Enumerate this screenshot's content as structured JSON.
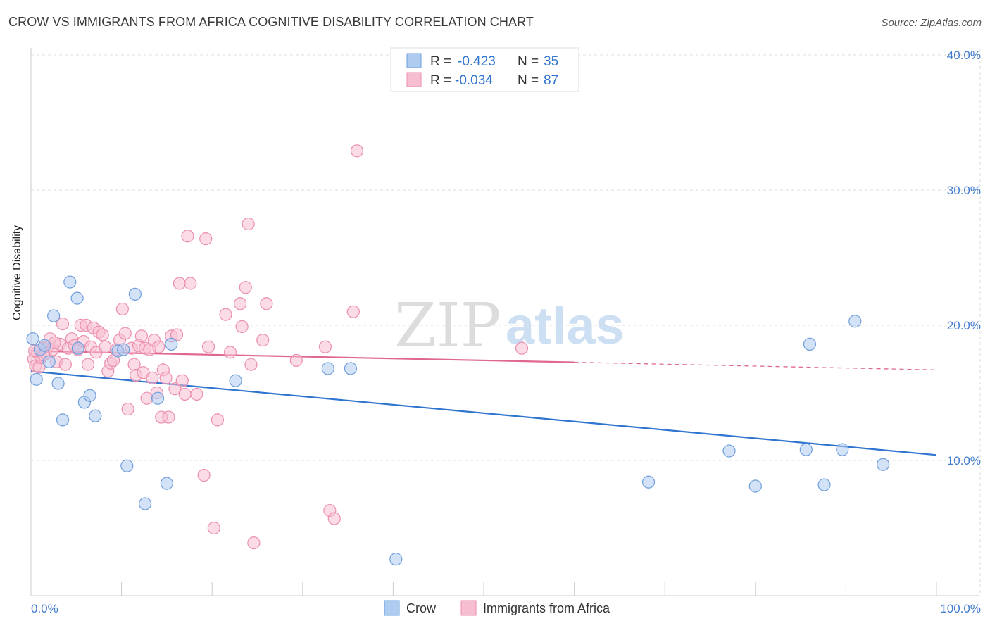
{
  "title": "CROW VS IMMIGRANTS FROM AFRICA COGNITIVE DISABILITY CORRELATION CHART",
  "source": "Source: ZipAtlas.com",
  "watermark": {
    "zip": "ZIP",
    "atlas": "atlas"
  },
  "legend_stats": [
    {
      "r_label": "R =",
      "r_value": "-0.423",
      "n_label": "N =",
      "n_value": "35"
    },
    {
      "r_label": "R =",
      "r_value": "-0.034",
      "n_label": "N =",
      "n_value": "87"
    }
  ],
  "colors": {
    "crow_fill": "#aecbf0",
    "crow_stroke": "#6f9fdc",
    "crow_line": "#2f74cf",
    "africa_fill": "#f7bdd0",
    "africa_stroke": "#ec8eae",
    "africa_line": "#e06890",
    "tick_text": "#3f7bd0",
    "grid": "#dddddd"
  },
  "chart_data": {
    "type": "scatter",
    "title": "CROW VS IMMIGRANTS FROM AFRICA COGNITIVE DISABILITY CORRELATION CHART",
    "xlabel": "",
    "ylabel": "Cognitive Disability",
    "xlim": [
      0,
      100
    ],
    "ylim": [
      0,
      40
    ],
    "x_tick_labels": [
      "0.0%",
      "100.0%"
    ],
    "y_ticks": [
      10,
      20,
      30,
      40
    ],
    "y_tick_labels": [
      "10.0%",
      "20.0%",
      "30.0%",
      "40.0%"
    ],
    "grid": true,
    "legend_position": "bottom",
    "series": [
      {
        "name": "Crow",
        "r": -0.423,
        "n": 35,
        "trend": {
          "x0": 0,
          "y0": 16.6,
          "x1": 100,
          "y1": 10.4,
          "solid_until": 100
        },
        "points": [
          [
            0.2,
            19.0
          ],
          [
            0.6,
            16.0
          ],
          [
            1.0,
            18.2
          ],
          [
            1.5,
            18.5
          ],
          [
            2.0,
            17.3
          ],
          [
            2.5,
            20.7
          ],
          [
            3.0,
            15.7
          ],
          [
            3.5,
            13.0
          ],
          [
            4.3,
            23.2
          ],
          [
            5.2,
            18.3
          ],
          [
            5.1,
            22.0
          ],
          [
            5.9,
            14.3
          ],
          [
            6.5,
            14.8
          ],
          [
            7.1,
            13.3
          ],
          [
            9.6,
            18.1
          ],
          [
            10.2,
            18.2
          ],
          [
            10.6,
            9.6
          ],
          [
            11.5,
            22.3
          ],
          [
            12.6,
            6.8
          ],
          [
            14.0,
            14.6
          ],
          [
            15.0,
            8.3
          ],
          [
            15.5,
            18.6
          ],
          [
            22.6,
            15.9
          ],
          [
            32.8,
            16.8
          ],
          [
            35.3,
            16.8
          ],
          [
            40.3,
            2.7
          ],
          [
            68.2,
            8.4
          ],
          [
            77.1,
            10.7
          ],
          [
            80.0,
            8.1
          ],
          [
            85.6,
            10.8
          ],
          [
            86.0,
            18.6
          ],
          [
            87.6,
            8.2
          ],
          [
            89.6,
            10.8
          ],
          [
            91.0,
            20.3
          ],
          [
            94.1,
            9.7
          ]
        ]
      },
      {
        "name": "Immigrants from Africa",
        "r": -0.034,
        "n": 87,
        "trend": {
          "x0": 0,
          "y0": 18.1,
          "x1": 100,
          "y1": 16.7,
          "solid_until": 60
        },
        "points": [
          [
            0.3,
            17.5
          ],
          [
            0.5,
            17.0
          ],
          [
            0.7,
            18.0
          ],
          [
            0.9,
            16.9
          ],
          [
            1.1,
            17.6
          ],
          [
            1.3,
            18.3
          ],
          [
            1.6,
            17.9
          ],
          [
            1.8,
            18.4
          ],
          [
            2.1,
            19.0
          ],
          [
            2.4,
            18.2
          ],
          [
            2.8,
            17.3
          ],
          [
            3.2,
            18.6
          ],
          [
            3.5,
            20.1
          ],
          [
            3.8,
            17.1
          ],
          [
            4.1,
            18.3
          ],
          [
            4.5,
            19.0
          ],
          [
            4.8,
            18.5
          ],
          [
            5.2,
            18.2
          ],
          [
            5.5,
            20.0
          ],
          [
            5.8,
            18.8
          ],
          [
            6.1,
            20.0
          ],
          [
            6.3,
            17.1
          ],
          [
            6.6,
            18.4
          ],
          [
            6.9,
            19.8
          ],
          [
            7.2,
            18.0
          ],
          [
            7.5,
            19.5
          ],
          [
            7.9,
            19.3
          ],
          [
            8.2,
            18.4
          ],
          [
            8.5,
            16.6
          ],
          [
            8.8,
            17.2
          ],
          [
            9.1,
            17.4
          ],
          [
            9.4,
            18.2
          ],
          [
            9.8,
            18.9
          ],
          [
            10.1,
            21.2
          ],
          [
            10.4,
            19.4
          ],
          [
            10.7,
            13.8
          ],
          [
            11.1,
            18.3
          ],
          [
            11.4,
            17.1
          ],
          [
            11.6,
            16.3
          ],
          [
            11.9,
            18.5
          ],
          [
            12.2,
            19.2
          ],
          [
            12.4,
            16.5
          ],
          [
            12.6,
            18.3
          ],
          [
            12.8,
            14.6
          ],
          [
            13.1,
            18.2
          ],
          [
            13.4,
            16.1
          ],
          [
            13.6,
            18.9
          ],
          [
            13.9,
            15.0
          ],
          [
            14.1,
            18.4
          ],
          [
            14.4,
            13.2
          ],
          [
            14.6,
            16.7
          ],
          [
            14.9,
            16.1
          ],
          [
            15.2,
            13.2
          ],
          [
            15.5,
            19.2
          ],
          [
            15.9,
            15.3
          ],
          [
            16.1,
            19.3
          ],
          [
            16.4,
            23.1
          ],
          [
            16.7,
            15.9
          ],
          [
            17.0,
            14.9
          ],
          [
            17.3,
            26.6
          ],
          [
            17.6,
            23.1
          ],
          [
            18.3,
            14.9
          ],
          [
            19.1,
            8.9
          ],
          [
            19.3,
            26.4
          ],
          [
            19.6,
            18.4
          ],
          [
            20.2,
            5.0
          ],
          [
            20.6,
            13.0
          ],
          [
            21.5,
            20.8
          ],
          [
            22.0,
            18.0
          ],
          [
            23.1,
            21.6
          ],
          [
            23.3,
            19.9
          ],
          [
            23.7,
            22.8
          ],
          [
            24.0,
            27.5
          ],
          [
            24.3,
            17.1
          ],
          [
            24.6,
            3.9
          ],
          [
            25.6,
            18.9
          ],
          [
            26.0,
            21.6
          ],
          [
            29.3,
            17.4
          ],
          [
            32.5,
            18.4
          ],
          [
            33.0,
            6.3
          ],
          [
            33.5,
            5.7
          ],
          [
            35.6,
            21.0
          ],
          [
            36.0,
            32.9
          ],
          [
            54.2,
            18.3
          ],
          [
            0.4,
            18.1
          ],
          [
            1.4,
            17.8
          ],
          [
            2.6,
            18.7
          ]
        ]
      }
    ]
  }
}
